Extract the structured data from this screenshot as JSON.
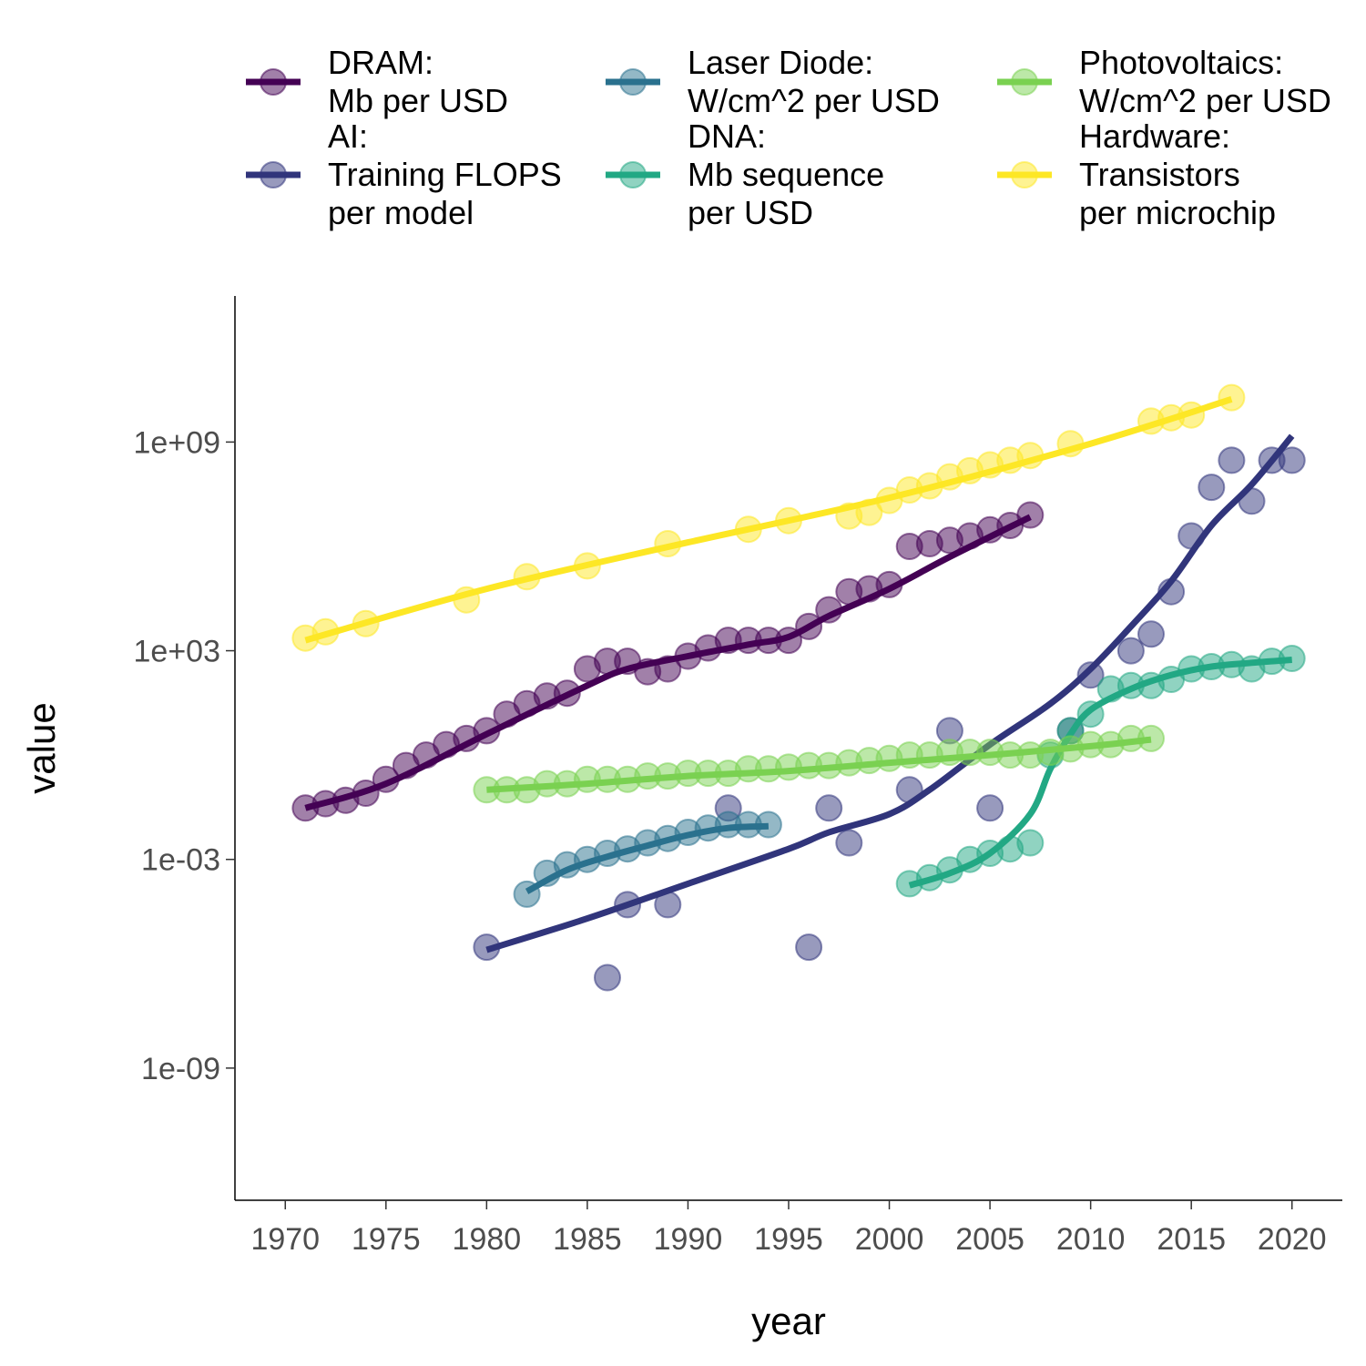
{
  "chart_data": {
    "type": "scatter",
    "xlabel": "year",
    "ylabel": "value",
    "y_scale": "log10",
    "xlim": [
      1967.5,
      2022.5
    ],
    "ylim_log10": [
      -12.8,
      13.2
    ],
    "x_ticks": [
      1970,
      1975,
      1980,
      1985,
      1990,
      1995,
      2000,
      2005,
      2010,
      2015,
      2020
    ],
    "y_ticks": [
      {
        "value": 1000000000.0,
        "label": "1e+09"
      },
      {
        "value": 1000.0,
        "label": "1e+03"
      },
      {
        "value": 0.001,
        "label": "1e-03"
      },
      {
        "value": 1e-09,
        "label": "1e-09"
      }
    ],
    "legend_position": "top",
    "grid": false,
    "series": [
      {
        "name": "DRAM:\nMb per USD",
        "color": "#440154",
        "points": [
          [
            1971,
            0.03
          ],
          [
            1972,
            0.04
          ],
          [
            1973,
            0.05
          ],
          [
            1974,
            0.08
          ],
          [
            1975,
            0.2
          ],
          [
            1976,
            0.5
          ],
          [
            1977,
            1
          ],
          [
            1978,
            2
          ],
          [
            1979,
            3
          ],
          [
            1980,
            5
          ],
          [
            1981,
            15
          ],
          [
            1982,
            30
          ],
          [
            1983,
            50
          ],
          [
            1984,
            60
          ],
          [
            1985,
            300
          ],
          [
            1986,
            500
          ],
          [
            1987,
            500
          ],
          [
            1988,
            250
          ],
          [
            1989,
            300
          ],
          [
            1990,
            700
          ],
          [
            1991,
            1200
          ],
          [
            1992,
            2000
          ],
          [
            1993,
            2000
          ],
          [
            1994,
            2000
          ],
          [
            1995,
            2000
          ],
          [
            1996,
            5000
          ],
          [
            1997,
            15000
          ],
          [
            1998,
            50000
          ],
          [
            1999,
            60000
          ],
          [
            2000,
            80000
          ],
          [
            2001,
            1000000
          ],
          [
            2002,
            1200000
          ],
          [
            2003,
            1500000
          ],
          [
            2004,
            2000000
          ],
          [
            2005,
            3000000
          ],
          [
            2006,
            4000000
          ],
          [
            2007,
            8000000
          ]
        ],
        "smooth": [
          [
            1971,
            0.03
          ],
          [
            1975,
            0.15
          ],
          [
            1980,
            4
          ],
          [
            1985,
            100
          ],
          [
            1987,
            300
          ],
          [
            1990,
            700
          ],
          [
            1993,
            1500
          ],
          [
            1995,
            2500
          ],
          [
            1997,
            10000
          ],
          [
            2000,
            60000
          ],
          [
            2003,
            500000
          ],
          [
            2007,
            7000000
          ]
        ]
      },
      {
        "name": "AI:\nTraining FLOPS\nper model",
        "color": "#31357b",
        "points": [
          [
            1980,
            3e-06
          ],
          [
            1986,
            4e-07
          ],
          [
            1987,
            5e-05
          ],
          [
            1989,
            5e-05
          ],
          [
            1992,
            0.03
          ],
          [
            1996,
            3e-06
          ],
          [
            1997,
            0.03
          ],
          [
            1998,
            0.003
          ],
          [
            2001,
            0.1
          ],
          [
            2003,
            5
          ],
          [
            2005,
            0.03
          ],
          [
            2009,
            5
          ],
          [
            2010,
            200
          ],
          [
            2012,
            1000
          ],
          [
            2013,
            3000
          ],
          [
            2014,
            50000
          ],
          [
            2015,
            2000000
          ],
          [
            2016,
            50000000
          ],
          [
            2017,
            300000000
          ],
          [
            2018,
            20000000
          ],
          [
            2019,
            300000000
          ],
          [
            2020,
            300000000
          ]
        ],
        "smooth": [
          [
            1980,
            2.5e-06
          ],
          [
            1985,
            2e-05
          ],
          [
            1990,
            0.0002
          ],
          [
            1995,
            0.002
          ],
          [
            1997,
            0.006
          ],
          [
            2000,
            0.02
          ],
          [
            2002,
            0.1
          ],
          [
            2005,
            2
          ],
          [
            2008,
            30
          ],
          [
            2010,
            300
          ],
          [
            2012,
            5000
          ],
          [
            2014,
            100000
          ],
          [
            2016,
            4000000
          ],
          [
            2018,
            60000000
          ],
          [
            2020,
            1500000000
          ]
        ]
      },
      {
        "name": "Laser Diode:\nW/cm^2 per USD",
        "color": "#2a718e",
        "points": [
          [
            1982,
            0.0001
          ],
          [
            1983,
            0.0004
          ],
          [
            1984,
            0.0007
          ],
          [
            1985,
            0.001
          ],
          [
            1986,
            0.0015
          ],
          [
            1987,
            0.002
          ],
          [
            1988,
            0.003
          ],
          [
            1989,
            0.004
          ],
          [
            1990,
            0.006
          ],
          [
            1991,
            0.008
          ],
          [
            1992,
            0.01
          ],
          [
            1993,
            0.01
          ],
          [
            1994,
            0.01
          ]
        ],
        "smooth": [
          [
            1982,
            0.00012
          ],
          [
            1984,
            0.0005
          ],
          [
            1986,
            0.0012
          ],
          [
            1988,
            0.0025
          ],
          [
            1990,
            0.005
          ],
          [
            1992,
            0.008
          ],
          [
            1994,
            0.009
          ]
        ]
      },
      {
        "name": "DNA:\nMb sequence\nper USD",
        "color": "#22a884",
        "points": [
          [
            2001,
            0.0002
          ],
          [
            2002,
            0.0003
          ],
          [
            2003,
            0.0005
          ],
          [
            2004,
            0.001
          ],
          [
            2005,
            0.0015
          ],
          [
            2006,
            0.002
          ],
          [
            2007,
            0.003
          ],
          [
            2008,
            1
          ],
          [
            2009,
            5
          ],
          [
            2010,
            15
          ],
          [
            2011,
            80
          ],
          [
            2012,
            100
          ],
          [
            2013,
            100
          ],
          [
            2014,
            150
          ],
          [
            2015,
            300
          ],
          [
            2016,
            350
          ],
          [
            2017,
            400
          ],
          [
            2018,
            300
          ],
          [
            2019,
            500
          ],
          [
            2020,
            600
          ]
        ],
        "smooth": [
          [
            2001,
            0.00018
          ],
          [
            2003,
            0.0004
          ],
          [
            2005,
            0.0015
          ],
          [
            2007,
            0.02
          ],
          [
            2008,
            0.4
          ],
          [
            2009,
            4
          ],
          [
            2010,
            20
          ],
          [
            2012,
            80
          ],
          [
            2014,
            200
          ],
          [
            2016,
            350
          ],
          [
            2018,
            450
          ],
          [
            2020,
            550
          ]
        ]
      },
      {
        "name": "Photovoltaics:\nW/cm^2 per USD",
        "color": "#7ad151",
        "points": [
          [
            1980,
            0.1
          ],
          [
            1981,
            0.1
          ],
          [
            1982,
            0.1
          ],
          [
            1983,
            0.15
          ],
          [
            1984,
            0.15
          ],
          [
            1985,
            0.2
          ],
          [
            1986,
            0.2
          ],
          [
            1987,
            0.2
          ],
          [
            1988,
            0.25
          ],
          [
            1989,
            0.25
          ],
          [
            1990,
            0.3
          ],
          [
            1991,
            0.3
          ],
          [
            1992,
            0.3
          ],
          [
            1993,
            0.4
          ],
          [
            1994,
            0.4
          ],
          [
            1995,
            0.45
          ],
          [
            1996,
            0.5
          ],
          [
            1997,
            0.5
          ],
          [
            1998,
            0.6
          ],
          [
            1999,
            0.7
          ],
          [
            2000,
            0.8
          ],
          [
            2001,
            1
          ],
          [
            2002,
            1
          ],
          [
            2003,
            1.2
          ],
          [
            2004,
            1.2
          ],
          [
            2005,
            1.2
          ],
          [
            2006,
            1
          ],
          [
            2007,
            1
          ],
          [
            2008,
            1.2
          ],
          [
            2009,
            1.5
          ],
          [
            2010,
            2
          ],
          [
            2011,
            2
          ],
          [
            2012,
            3
          ],
          [
            2013,
            3
          ]
        ],
        "smooth": [
          [
            1980,
            0.1
          ],
          [
            1985,
            0.15
          ],
          [
            1990,
            0.25
          ],
          [
            1995,
            0.35
          ],
          [
            2000,
            0.6
          ],
          [
            2005,
            1
          ],
          [
            2010,
            1.8
          ],
          [
            2013,
            2.8
          ]
        ]
      },
      {
        "name": "Hardware:\nTransistors\nper microchip",
        "color": "#fde725",
        "points": [
          [
            1971,
            2300
          ],
          [
            1972,
            3500
          ],
          [
            1974,
            6000
          ],
          [
            1979,
            29000
          ],
          [
            1982,
            134000
          ],
          [
            1985,
            275000
          ],
          [
            1989,
            1200000
          ],
          [
            1993,
            3100000
          ],
          [
            1995,
            5500000
          ],
          [
            1998,
            7500000
          ],
          [
            1999,
            9500000
          ],
          [
            2000,
            21000000
          ],
          [
            2001,
            42000000
          ],
          [
            2002,
            55000000
          ],
          [
            2003,
            100000000
          ],
          [
            2004,
            150000000
          ],
          [
            2005,
            220000000
          ],
          [
            2006,
            300000000
          ],
          [
            2007,
            410000000
          ],
          [
            2009,
            900000000
          ],
          [
            2013,
            4000000000
          ],
          [
            2014,
            5000000000
          ],
          [
            2015,
            6000000000
          ],
          [
            2017,
            19000000000
          ]
        ],
        "smooth": [
          [
            1971,
            2000
          ],
          [
            1980,
            60000
          ],
          [
            1990,
            1300000
          ],
          [
            2000,
            25000000
          ],
          [
            2010,
            900000000
          ],
          [
            2017,
            17000000000
          ]
        ]
      }
    ]
  }
}
